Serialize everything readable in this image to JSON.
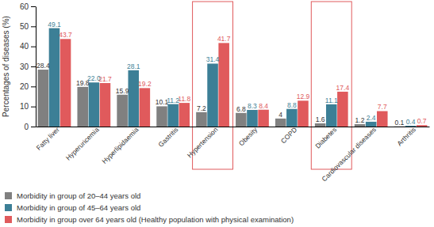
{
  "chart_data": {
    "type": "bar",
    "y_label": "Percentages of diseases (%)",
    "categories": [
      "Fatty liver",
      "Hyperuricemia",
      "Hyperlipidaemia",
      "Gastritis",
      "Hypertension",
      "Obesity",
      "COPD",
      "Diabetes",
      "Cardiovascular diseases",
      "Arthritis"
    ],
    "series": [
      {
        "name": "Morbidity in group of 20–44 years old",
        "color": "#808080",
        "values": [
          28.4,
          19.8,
          15.9,
          10.1,
          7.2,
          6.8,
          4,
          1.6,
          1.2,
          0.1
        ]
      },
      {
        "name": "Morbidity in group of 45–64 years old",
        "color": "#3c7f96",
        "values": [
          49.1,
          22.0,
          28.1,
          11.2,
          31.4,
          8.3,
          8.8,
          11.1,
          2.4,
          0.4
        ],
        "value_labels": [
          "49.1",
          "22.0",
          "28.1",
          "11.2",
          "31.4",
          "8.3",
          "8.8",
          "11.1",
          "2.4",
          "0.4"
        ]
      },
      {
        "name": "Morbidity in group over 64 years old (Healthy population with physical examination)",
        "color": "#e05a5c",
        "values": [
          43.7,
          21.7,
          19.2,
          11.8,
          41.7,
          8.4,
          12.9,
          17.4,
          7.7,
          0.7
        ]
      }
    ],
    "ylim": [
      0,
      60
    ],
    "yticks": [
      0,
      10,
      20,
      30,
      40,
      50,
      60
    ],
    "grid": false,
    "legend": "bottom",
    "data_labels": true
  }
}
